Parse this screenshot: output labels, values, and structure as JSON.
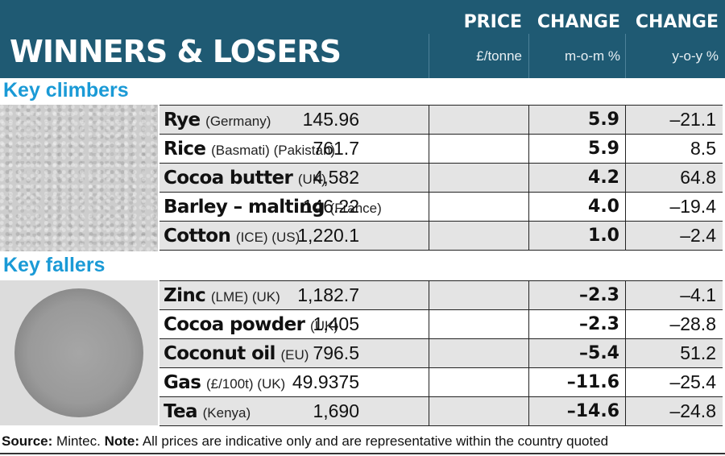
{
  "title": "WINNERS & LOSERS",
  "columns": [
    {
      "title": "PRICE",
      "unit": "£/tonne"
    },
    {
      "title": "CHANGE",
      "unit": "m-o-m %"
    },
    {
      "title": "CHANGE",
      "unit": "y-o-y %"
    }
  ],
  "sections": [
    {
      "title": "Key climbers",
      "image": "rye-grain-photo",
      "rows": [
        {
          "name": "Rye",
          "detail": "(Germany)",
          "price": "145.96",
          "mom": "5.9",
          "yoy": "–21.1"
        },
        {
          "name": "Rice",
          "detail": "(Basmati) (Pakistan)",
          "price": "761.7",
          "mom": "5.9",
          "yoy": "8.5"
        },
        {
          "name": "Cocoa butter",
          "detail": "(UK)",
          "price": "4,582",
          "mom": "4.2",
          "yoy": "64.8"
        },
        {
          "name": "Barley – malting",
          "detail": "(France)",
          "price": "146.22",
          "mom": "4.0",
          "yoy": "–19.4"
        },
        {
          "name": "Cotton",
          "detail": "(ICE) (US)",
          "price": "1,220.1",
          "mom": "1.0",
          "yoy": "–2.4"
        }
      ]
    },
    {
      "title": "Key fallers",
      "image": "zinc-powder-dish-photo",
      "rows": [
        {
          "name": "Zinc",
          "detail": "(LME) (UK)",
          "price": "1,182.7",
          "mom": "–2.3",
          "yoy": "–4.1"
        },
        {
          "name": "Cocoa powder",
          "detail": "(UK)",
          "price": "1,405",
          "mom": "–2.3",
          "yoy": "–28.8"
        },
        {
          "name": "Coconut oil",
          "detail": "(EU)",
          "price": "796.5",
          "mom": "–5.4",
          "yoy": "51.2"
        },
        {
          "name": "Gas",
          "detail": "(£/100t) (UK)",
          "price": "49.9375",
          "mom": "–11.6",
          "yoy": "–25.4"
        },
        {
          "name": "Tea",
          "detail": "(Kenya)",
          "price": "1,690",
          "mom": "–14.6",
          "yoy": "–24.8"
        }
      ]
    }
  ],
  "footer": {
    "source_label": "Source:",
    "source_text": "Mintec.",
    "note_label": "Note:",
    "note_text": "All prices are indicative only and are representative within the country quoted"
  },
  "colors": {
    "header_bg": "#1f5a73",
    "section_title": "#1a9ad6",
    "row_shade": "#e4e4e4"
  }
}
